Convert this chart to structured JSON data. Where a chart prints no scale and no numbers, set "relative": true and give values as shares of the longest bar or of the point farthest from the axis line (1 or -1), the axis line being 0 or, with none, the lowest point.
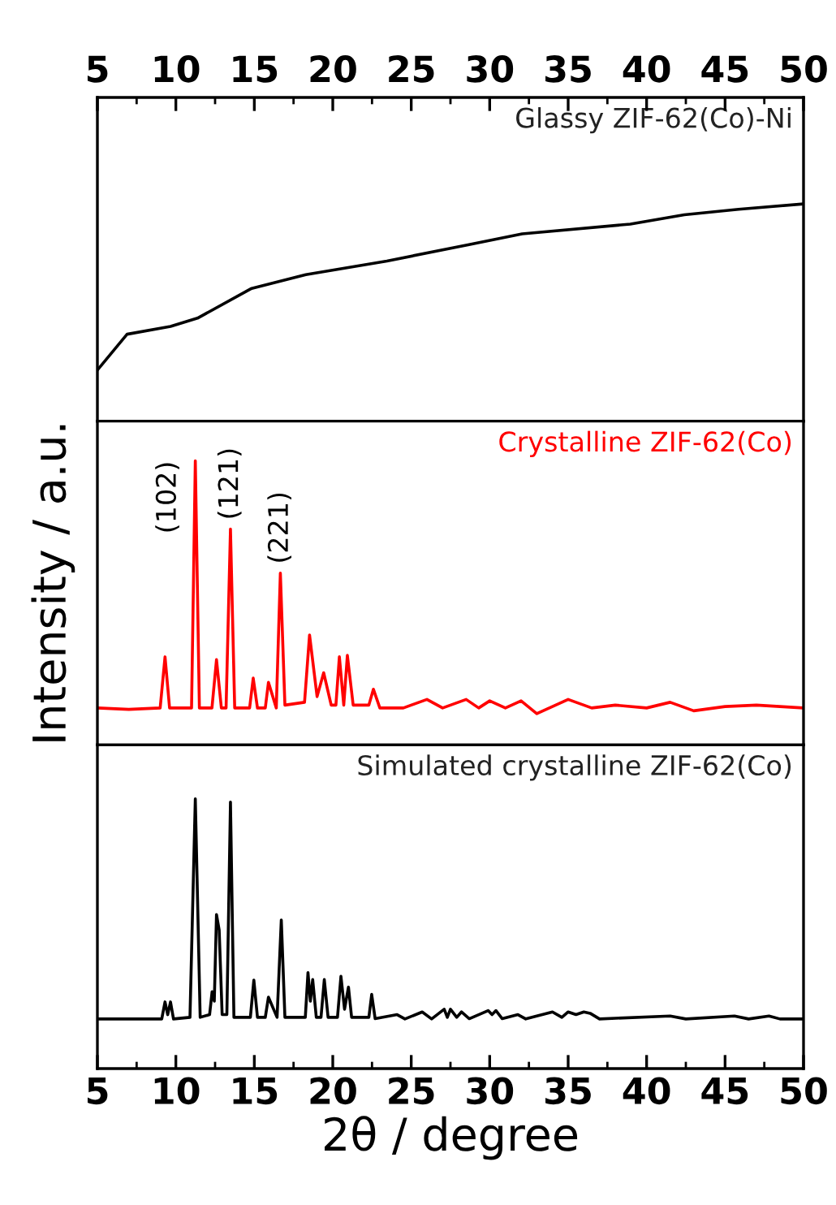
{
  "chart_data": [
    {
      "type": "line",
      "relative": true,
      "xlim": [
        5,
        50
      ],
      "x2lim": [
        5,
        50
      ],
      "x2ticks": [
        5,
        10,
        15,
        20,
        25,
        30,
        35,
        40,
        45,
        50
      ],
      "tick_labels": "x",
      "series": [
        {
          "name": "Glassy ZIF-62(Co)-Ni",
          "color": "#000000",
          "x": [
            5.0,
            6.89,
            9.66,
            11.38,
            14.83,
            18.28,
            23.45,
            28.62,
            32.07,
            38.96,
            42.4,
            45.86,
            50.0
          ],
          "values": [
            0.235,
            0.4,
            0.436,
            0.474,
            0.611,
            0.674,
            0.737,
            0.812,
            0.862,
            0.907,
            0.95,
            0.975,
            1.0
          ]
        }
      ]
    },
    {
      "type": "line",
      "relative": true,
      "xlim": [
        5,
        50
      ],
      "tick_labels": false,
      "ylabel": "Intensity / a.u.",
      "annotations": [
        {
          "text": "(102)",
          "x": 11.24,
          "y": 1.0
        },
        {
          "text": "(121)",
          "x": 13.48,
          "y": 0.76
        },
        {
          "text": "(221)",
          "x": 16.66,
          "y": 0.605
        }
      ],
      "series": [
        {
          "name": "Crystalline ZIF-62(Co)",
          "color": "#ff0000",
          "x": [
            5.0,
            7.0,
            9.0,
            9.31,
            9.6,
            11.0,
            11.24,
            11.5,
            12.3,
            12.59,
            12.9,
            13.2,
            13.48,
            13.75,
            14.7,
            14.93,
            15.2,
            15.7,
            15.9,
            16.4,
            16.66,
            16.95,
            18.2,
            18.52,
            19.0,
            19.42,
            19.9,
            20.2,
            20.42,
            20.7,
            20.93,
            21.3,
            22.3,
            22.59,
            23.0,
            24.5,
            26.0,
            27.0,
            28.5,
            29.3,
            30.0,
            31.0,
            32.0,
            33.0,
            35.0,
            36.5,
            38.0,
            40.0,
            41.5,
            43.0,
            45.0,
            47.0,
            50.0
          ],
          "values": [
            0.13,
            0.125,
            0.13,
            0.31,
            0.13,
            0.13,
            1.0,
            0.13,
            0.13,
            0.3,
            0.13,
            0.13,
            0.76,
            0.13,
            0.13,
            0.235,
            0.13,
            0.13,
            0.22,
            0.13,
            0.605,
            0.14,
            0.15,
            0.387,
            0.17,
            0.254,
            0.14,
            0.14,
            0.31,
            0.14,
            0.315,
            0.14,
            0.14,
            0.196,
            0.13,
            0.13,
            0.16,
            0.13,
            0.16,
            0.13,
            0.155,
            0.13,
            0.155,
            0.11,
            0.16,
            0.13,
            0.14,
            0.13,
            0.15,
            0.12,
            0.135,
            0.14,
            0.13
          ]
        }
      ]
    },
    {
      "type": "line",
      "relative": true,
      "xlim": [
        5,
        50
      ],
      "xticks": [
        5,
        10,
        15,
        20,
        25,
        30,
        35,
        40,
        45,
        50
      ],
      "tick_labels": "x",
      "xlabel": "2θ / degree",
      "series": [
        {
          "name": "Simulated crystalline ZIF-62(Co)",
          "color": "#000000",
          "x": [
            5.0,
            9.1,
            9.31,
            9.48,
            9.66,
            9.85,
            10.9,
            11.24,
            11.55,
            12.15,
            12.31,
            12.45,
            12.59,
            12.76,
            12.95,
            13.25,
            13.48,
            13.7,
            14.75,
            14.97,
            15.2,
            15.7,
            15.9,
            16.45,
            16.72,
            16.95,
            18.25,
            18.42,
            18.57,
            18.72,
            18.95,
            19.25,
            19.46,
            19.7,
            20.3,
            20.52,
            20.75,
            21.0,
            21.2,
            22.3,
            22.48,
            22.7,
            24.1,
            24.6,
            25.7,
            26.3,
            27.1,
            27.3,
            27.5,
            27.9,
            28.2,
            28.7,
            29.9,
            30.15,
            30.4,
            30.8,
            31.8,
            32.3,
            34.0,
            34.6,
            35.0,
            35.5,
            36.0,
            36.4,
            37.0,
            41.5,
            42.5,
            45.6,
            46.5,
            47.8,
            48.5,
            50.0
          ],
          "values": [
            0.184,
            0.184,
            0.247,
            0.2,
            0.247,
            0.184,
            0.19,
            1.0,
            0.19,
            0.2,
            0.285,
            0.25,
            0.571,
            0.514,
            0.2,
            0.2,
            0.988,
            0.19,
            0.19,
            0.328,
            0.19,
            0.19,
            0.265,
            0.19,
            0.551,
            0.19,
            0.19,
            0.356,
            0.25,
            0.33,
            0.19,
            0.19,
            0.33,
            0.19,
            0.19,
            0.342,
            0.22,
            0.302,
            0.19,
            0.19,
            0.275,
            0.185,
            0.2,
            0.184,
            0.21,
            0.184,
            0.22,
            0.19,
            0.22,
            0.19,
            0.21,
            0.185,
            0.215,
            0.2,
            0.215,
            0.185,
            0.2,
            0.184,
            0.21,
            0.19,
            0.21,
            0.2,
            0.21,
            0.205,
            0.184,
            0.195,
            0.184,
            0.195,
            0.184,
            0.195,
            0.184,
            0.184
          ]
        }
      ]
    }
  ]
}
